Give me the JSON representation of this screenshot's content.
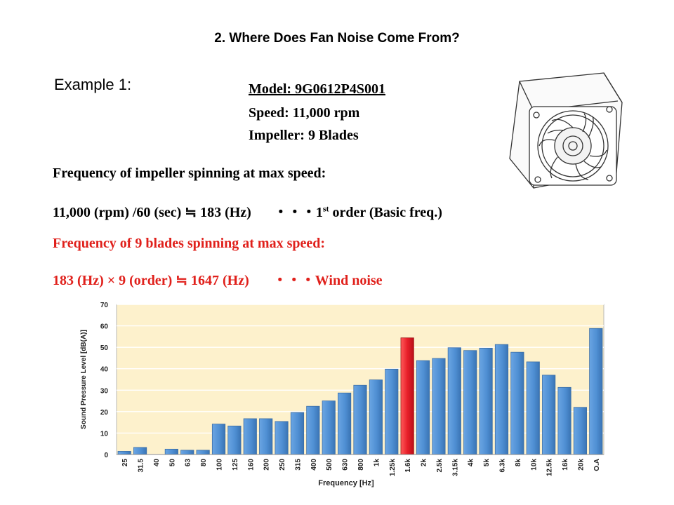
{
  "slide": {
    "title": "2. Where Does Fan Noise Come From?",
    "example": "Example 1:",
    "model": "Model: 9G0612P4S001",
    "speed": "Speed: 11,000 rpm",
    "impeller": "Impeller: 9 Blades",
    "freq_heading": "Frequency of impeller spinning at max speed:",
    "freq_calc": "11,000 (rpm) /60 (sec) ≒  183 (Hz)",
    "freq_note_prefix": "・・・1",
    "freq_note_sup": "st",
    "freq_note_suffix": " order (Basic freq.)",
    "blades_heading": "Frequency of 9 blades spinning at max speed:",
    "blades_calc": "183 (Hz) × 9 (order) ≒ 1647 (Hz)",
    "blades_note": "・・・Wind noise"
  },
  "colors": {
    "bar": "#4f8fd3",
    "highlight": "#e8202a",
    "plot_bg": "#fdf1cc",
    "accent_text": "#e0201b"
  },
  "chart_data": {
    "type": "bar",
    "title": "",
    "xlabel": "Frequency [Hz]",
    "ylabel": "Sound Pressure Level [dB(A)]",
    "ylim": [
      0,
      70
    ],
    "yticks": [
      0,
      10,
      20,
      30,
      40,
      50,
      60,
      70
    ],
    "grid": true,
    "categories": [
      "25",
      "31.5",
      "40",
      "50",
      "63",
      "80",
      "100",
      "125",
      "160",
      "200",
      "250",
      "315",
      "400",
      "500",
      "630",
      "800",
      "1k",
      "1.25k",
      "1.6k",
      "2k",
      "2.5k",
      "3.15k",
      "4k",
      "5k",
      "6.3k",
      "8k",
      "10k",
      "12.5k",
      "16k",
      "20k",
      "O.A"
    ],
    "values": [
      1.5,
      3.3,
      0,
      2.5,
      2,
      2,
      14.2,
      13.3,
      16.7,
      16.7,
      15.4,
      19.6,
      22.5,
      25,
      28.7,
      32.3,
      34.8,
      39.8,
      54.4,
      43.8,
      44.8,
      49.8,
      48.5,
      49.6,
      51.3,
      47.7,
      43.2,
      37,
      31.3,
      22,
      58.8
    ],
    "highlight_category": "1.6k"
  }
}
